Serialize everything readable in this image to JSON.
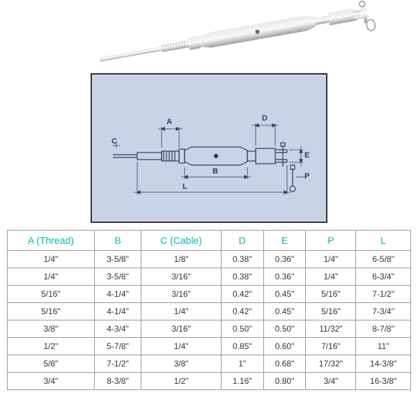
{
  "product_image": {
    "description": "Stainless steel turnbuckle with jaw end and swage stud",
    "body_color": "#c0c0c0",
    "highlight_color": "#e8e8e8",
    "shadow_color": "#888888"
  },
  "diagram": {
    "border_color": "#333333",
    "background_color": "#c8d4e6",
    "line_color": "#2a3a5a",
    "labels": {
      "A": "A",
      "B": "B",
      "C": "C",
      "D": "D",
      "E": "E",
      "P": "P",
      "L": "L"
    }
  },
  "table": {
    "header_color": "#00b8b8",
    "border_color": "#999999",
    "text_color": "#333333",
    "columns": [
      "A (Thread)",
      "B",
      "C (Cable)",
      "D",
      "E",
      "P",
      "L"
    ],
    "rows": [
      [
        "1/4\"",
        "3-5/8\"",
        "1/8\"",
        "0.38\"",
        "0.36\"",
        "1/4\"",
        "6-5/8\""
      ],
      [
        "1/4\"",
        "3-5/8\"",
        "3/16\"",
        "0.38\"",
        "0.36\"",
        "1/4\"",
        "6-3/4\""
      ],
      [
        "5/16\"",
        "4-1/4\"",
        "3/16\"",
        "0.42\"",
        "0.45\"",
        "5/16\"",
        "7-1/2\""
      ],
      [
        "5/16\"",
        "4-1/4\"",
        "1/4\"",
        "0.42\"",
        "0.45\"",
        "5/16\"",
        "7-3/4\""
      ],
      [
        "3/8\"",
        "4-3/4\"",
        "3/16\"",
        "0.50\"",
        "0.50\"",
        "11/32\"",
        "8-7/8\""
      ],
      [
        "1/2\"",
        "5-7/8\"",
        "1/4\"",
        "0.85\"",
        "0.60\"",
        "7/16\"",
        "11\""
      ],
      [
        "5/8\"",
        "7-1/2\"",
        "3/8\"",
        "1\"",
        "0.68\"",
        "17/32\"",
        "14-3/8\""
      ],
      [
        "3/4\"",
        "8-3/8\"",
        "1/2\"",
        "1.16\"",
        "0.80\"",
        "3/4\"",
        "16-3/8\""
      ]
    ]
  }
}
